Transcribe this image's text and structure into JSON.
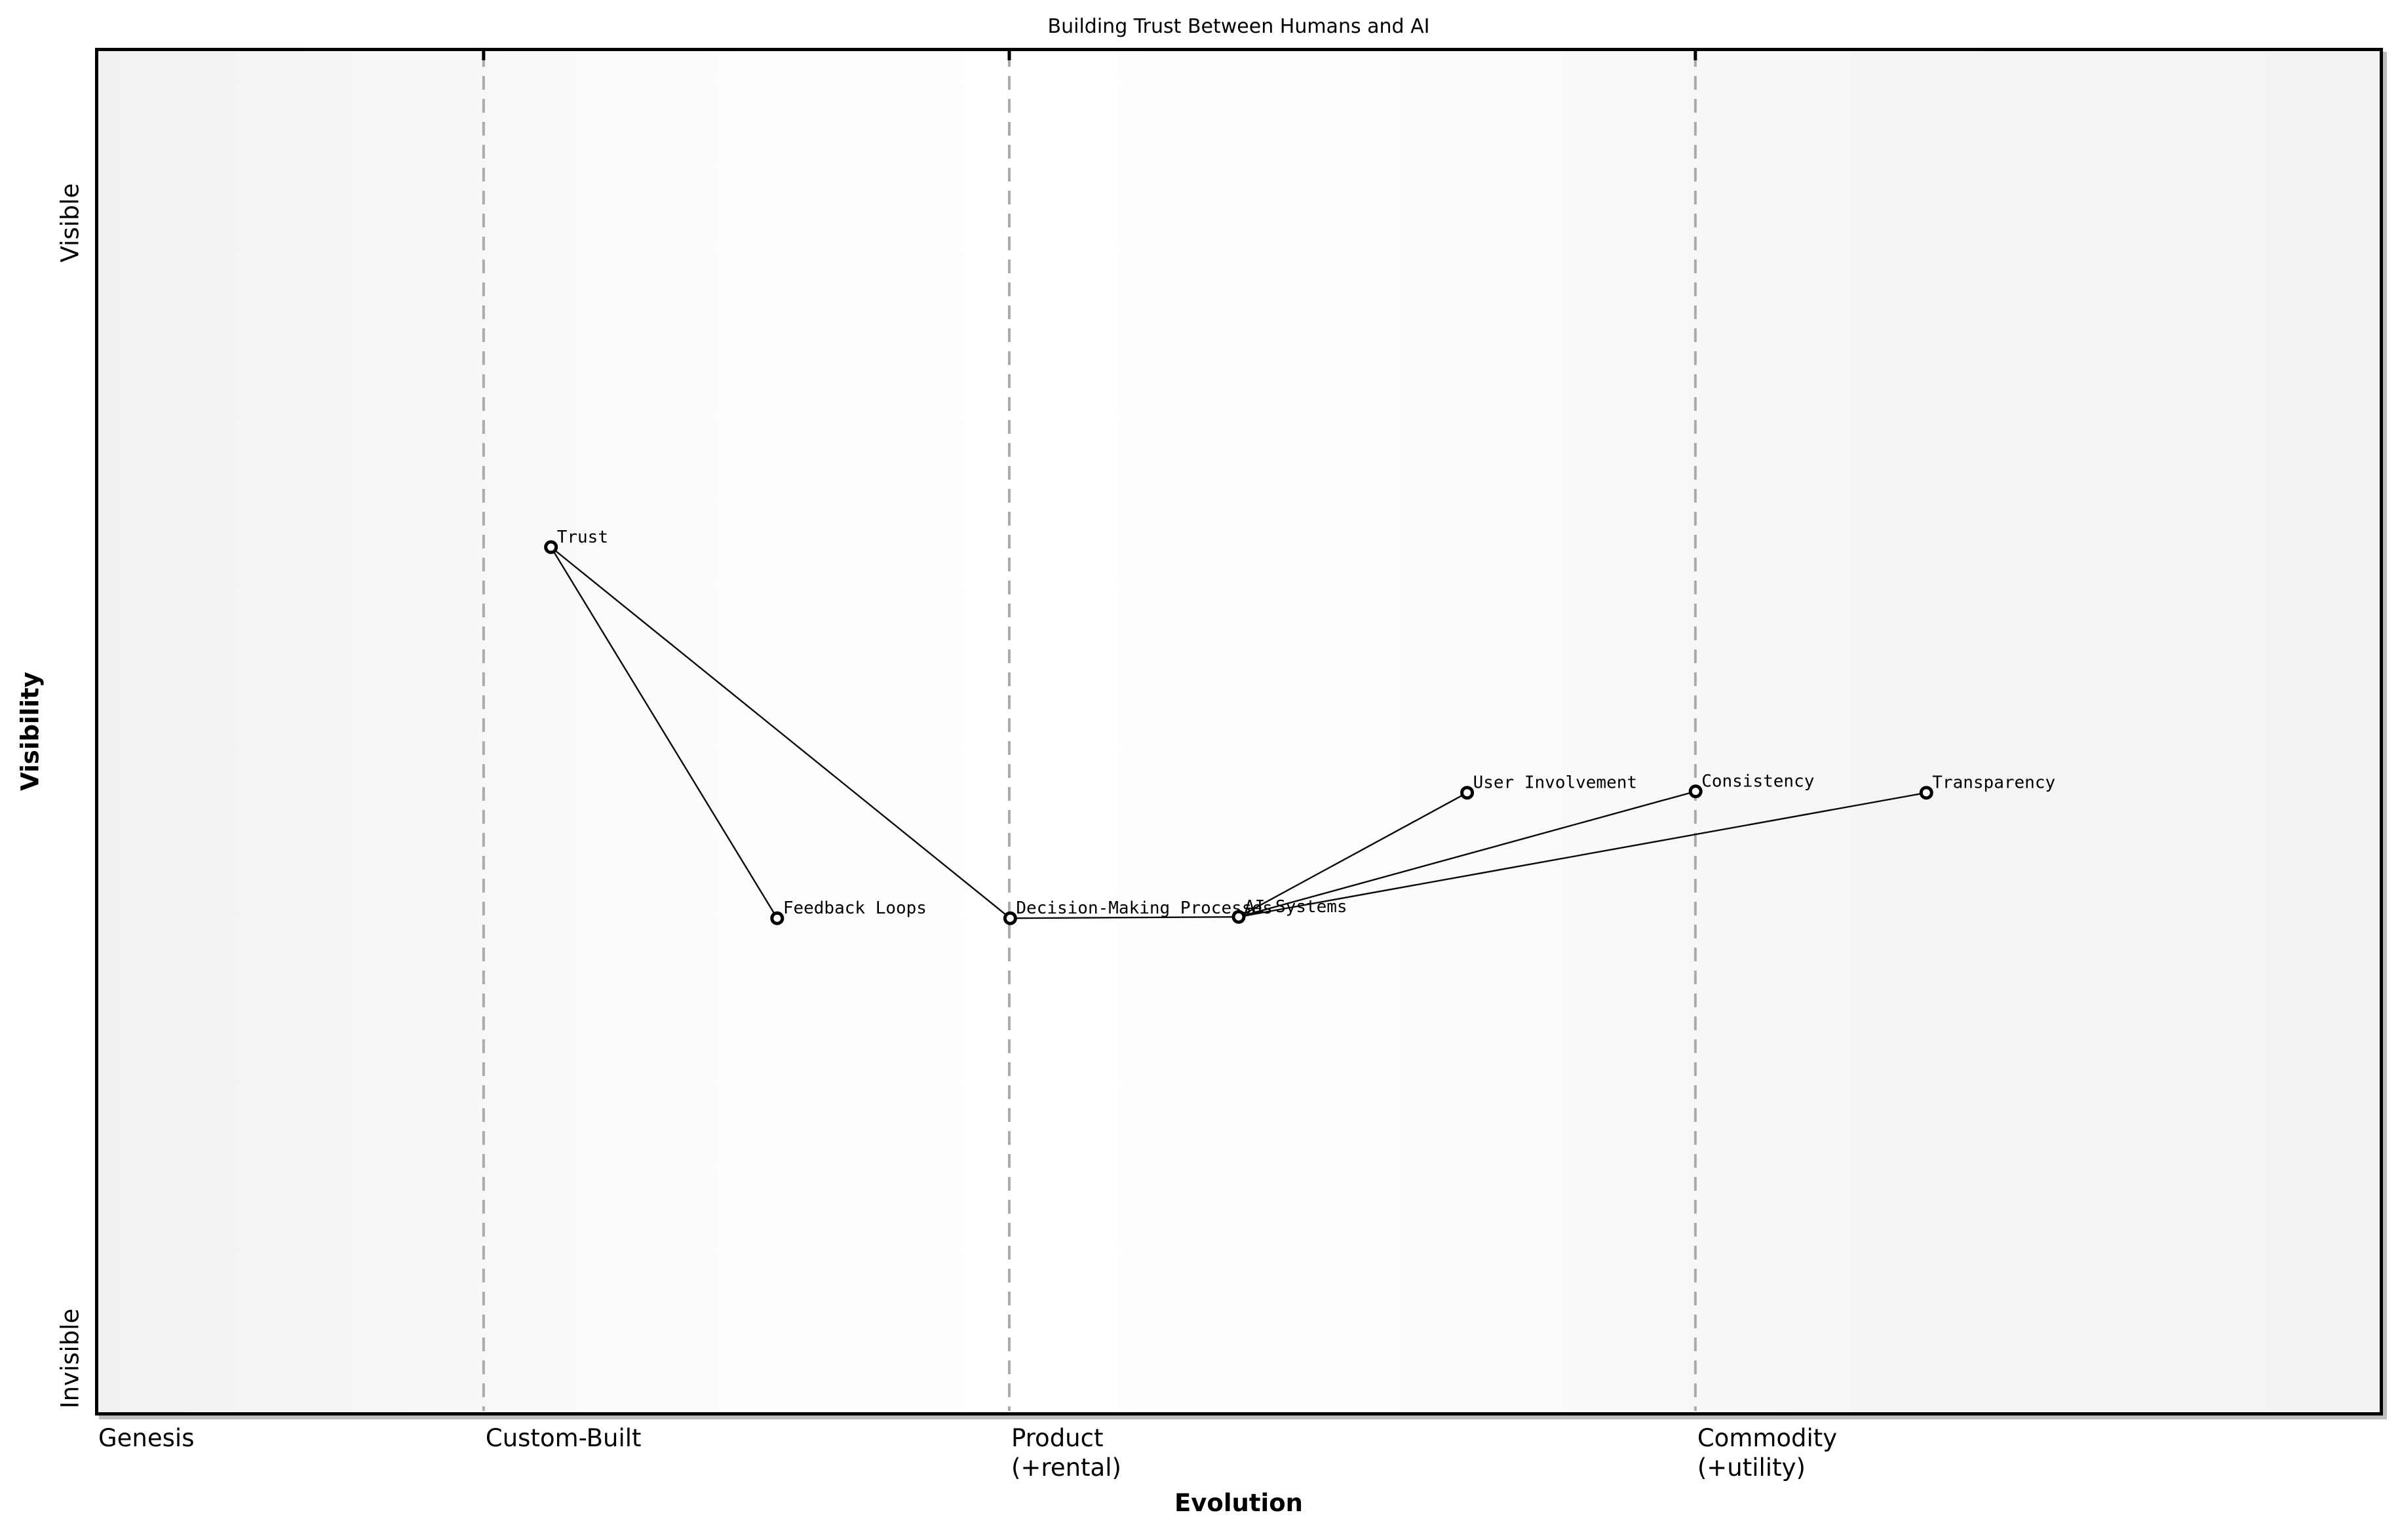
{
  "title": "Building Trust Between Humans and AI",
  "axes": {
    "x_label": "Evolution",
    "y_label": "Visibility",
    "y_top_tick_label": "Visible",
    "y_bottom_tick_label": "Invisible",
    "stages": [
      {
        "label": "Genesis",
        "sub": "",
        "x": 0.0
      },
      {
        "label": "Custom-Built",
        "sub": "",
        "x": 0.1695
      },
      {
        "label": "Product",
        "sub": "(+rental)",
        "x": 0.3996
      },
      {
        "label": "Commodity",
        "sub": "(+utility)",
        "x": 0.6999
      }
    ],
    "boundaries_x": [
      0.1695,
      0.3996,
      0.6999
    ]
  },
  "chart_data": {
    "type": "scatter",
    "subtype": "wardley-map",
    "title": "Building Trust Between Humans and AI",
    "xlabel": "Evolution",
    "ylabel": "Visibility",
    "x_stage_labels": [
      "Genesis",
      "Custom-Built",
      "Product (+rental)",
      "Commodity (+utility)"
    ],
    "y_range_labels": [
      "Invisible",
      "Visible"
    ],
    "xlim": [
      0,
      1
    ],
    "ylim": [
      0,
      1
    ],
    "grid": "dashed vertical stage boundaries at x = 0.17, 0.40, 0.70",
    "legend": "none",
    "nodes": [
      {
        "name": "Trust",
        "evolution": 0.199,
        "visibility": 0.635
      },
      {
        "name": "Feedback Loops",
        "evolution": 0.298,
        "visibility": 0.363
      },
      {
        "name": "Decision-Making Processes",
        "evolution": 0.4,
        "visibility": 0.363
      },
      {
        "name": "AI Systems",
        "evolution": 0.5,
        "visibility": 0.364
      },
      {
        "name": "User Involvement",
        "evolution": 0.6,
        "visibility": 0.455
      },
      {
        "name": "Consistency",
        "evolution": 0.7,
        "visibility": 0.456
      },
      {
        "name": "Transparency",
        "evolution": 0.801,
        "visibility": 0.455
      }
    ],
    "edges": [
      [
        "Trust",
        "Feedback Loops"
      ],
      [
        "Trust",
        "Decision-Making Processes"
      ],
      [
        "Decision-Making Processes",
        "AI Systems"
      ],
      [
        "AI Systems",
        "User Involvement"
      ],
      [
        "AI Systems",
        "Consistency"
      ],
      [
        "AI Systems",
        "Transparency"
      ]
    ]
  },
  "colors": {
    "text": "#000000",
    "frame": "#000000",
    "edge": "#0a0a0a",
    "node_fill": "#ffffff",
    "node_stroke": "#000000",
    "boundary_dash": "#ababab",
    "boundary_tick": "#000000"
  }
}
